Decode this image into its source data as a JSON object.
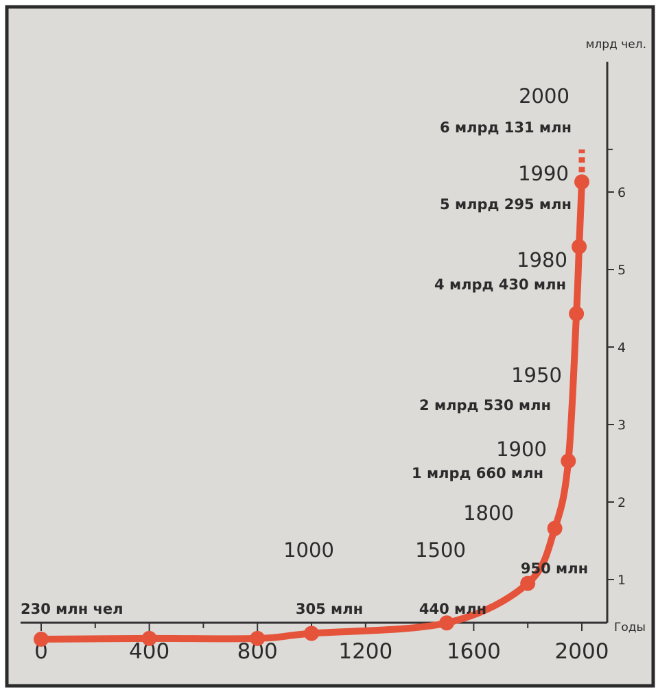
{
  "chart_data": {
    "type": "line",
    "title": "",
    "xlabel": "Годы",
    "ylabel": "млрд чел.",
    "xlim": [
      0,
      2000
    ],
    "ylim": [
      0,
      6.5
    ],
    "grid": false,
    "x_ticks": [
      "0",
      "400",
      "800",
      "1200",
      "1600",
      "2000"
    ],
    "y_ticks": [
      "1",
      "2",
      "3",
      "4",
      "5",
      "6"
    ],
    "colors": {
      "line": "#e5533a",
      "background": "#dddbd8",
      "axis": "#333333",
      "frame": "#2b2b2b"
    },
    "series": [
      {
        "x": [
          0,
          400,
          800,
          1000,
          1500,
          1800,
          1900,
          1950,
          1980,
          1990,
          2000
        ],
        "y": [
          0.23,
          0.24,
          0.24,
          0.305,
          0.44,
          0.95,
          1.66,
          2.53,
          4.43,
          5.295,
          6.131
        ]
      }
    ],
    "projection": {
      "x": [
        2000,
        2000
      ],
      "y": [
        6.131,
        6.55
      ]
    },
    "annotations": [
      {
        "x": 0,
        "y": 0.23,
        "year": "",
        "text": "230 млн чел"
      },
      {
        "x": 1000,
        "y": 0.305,
        "year": "1000",
        "text": "305 млн"
      },
      {
        "x": 1500,
        "y": 0.44,
        "year": "1500",
        "text": "440 млн"
      },
      {
        "x": 1800,
        "y": 0.95,
        "year": "1800",
        "text": "950 млн"
      },
      {
        "x": 1900,
        "y": 1.66,
        "year": "1900",
        "text": "1 млрд 660 млн"
      },
      {
        "x": 1950,
        "y": 2.53,
        "year": "1950",
        "text": "2 млрд 530 млн"
      },
      {
        "x": 1980,
        "y": 4.43,
        "year": "1980",
        "text": "4 млрд 430 млн"
      },
      {
        "x": 1990,
        "y": 5.295,
        "year": "1990",
        "text": "5 млрд 295 млн"
      },
      {
        "x": 2000,
        "y": 6.131,
        "year": "2000",
        "text": "6 млрд 131 млн"
      }
    ]
  }
}
